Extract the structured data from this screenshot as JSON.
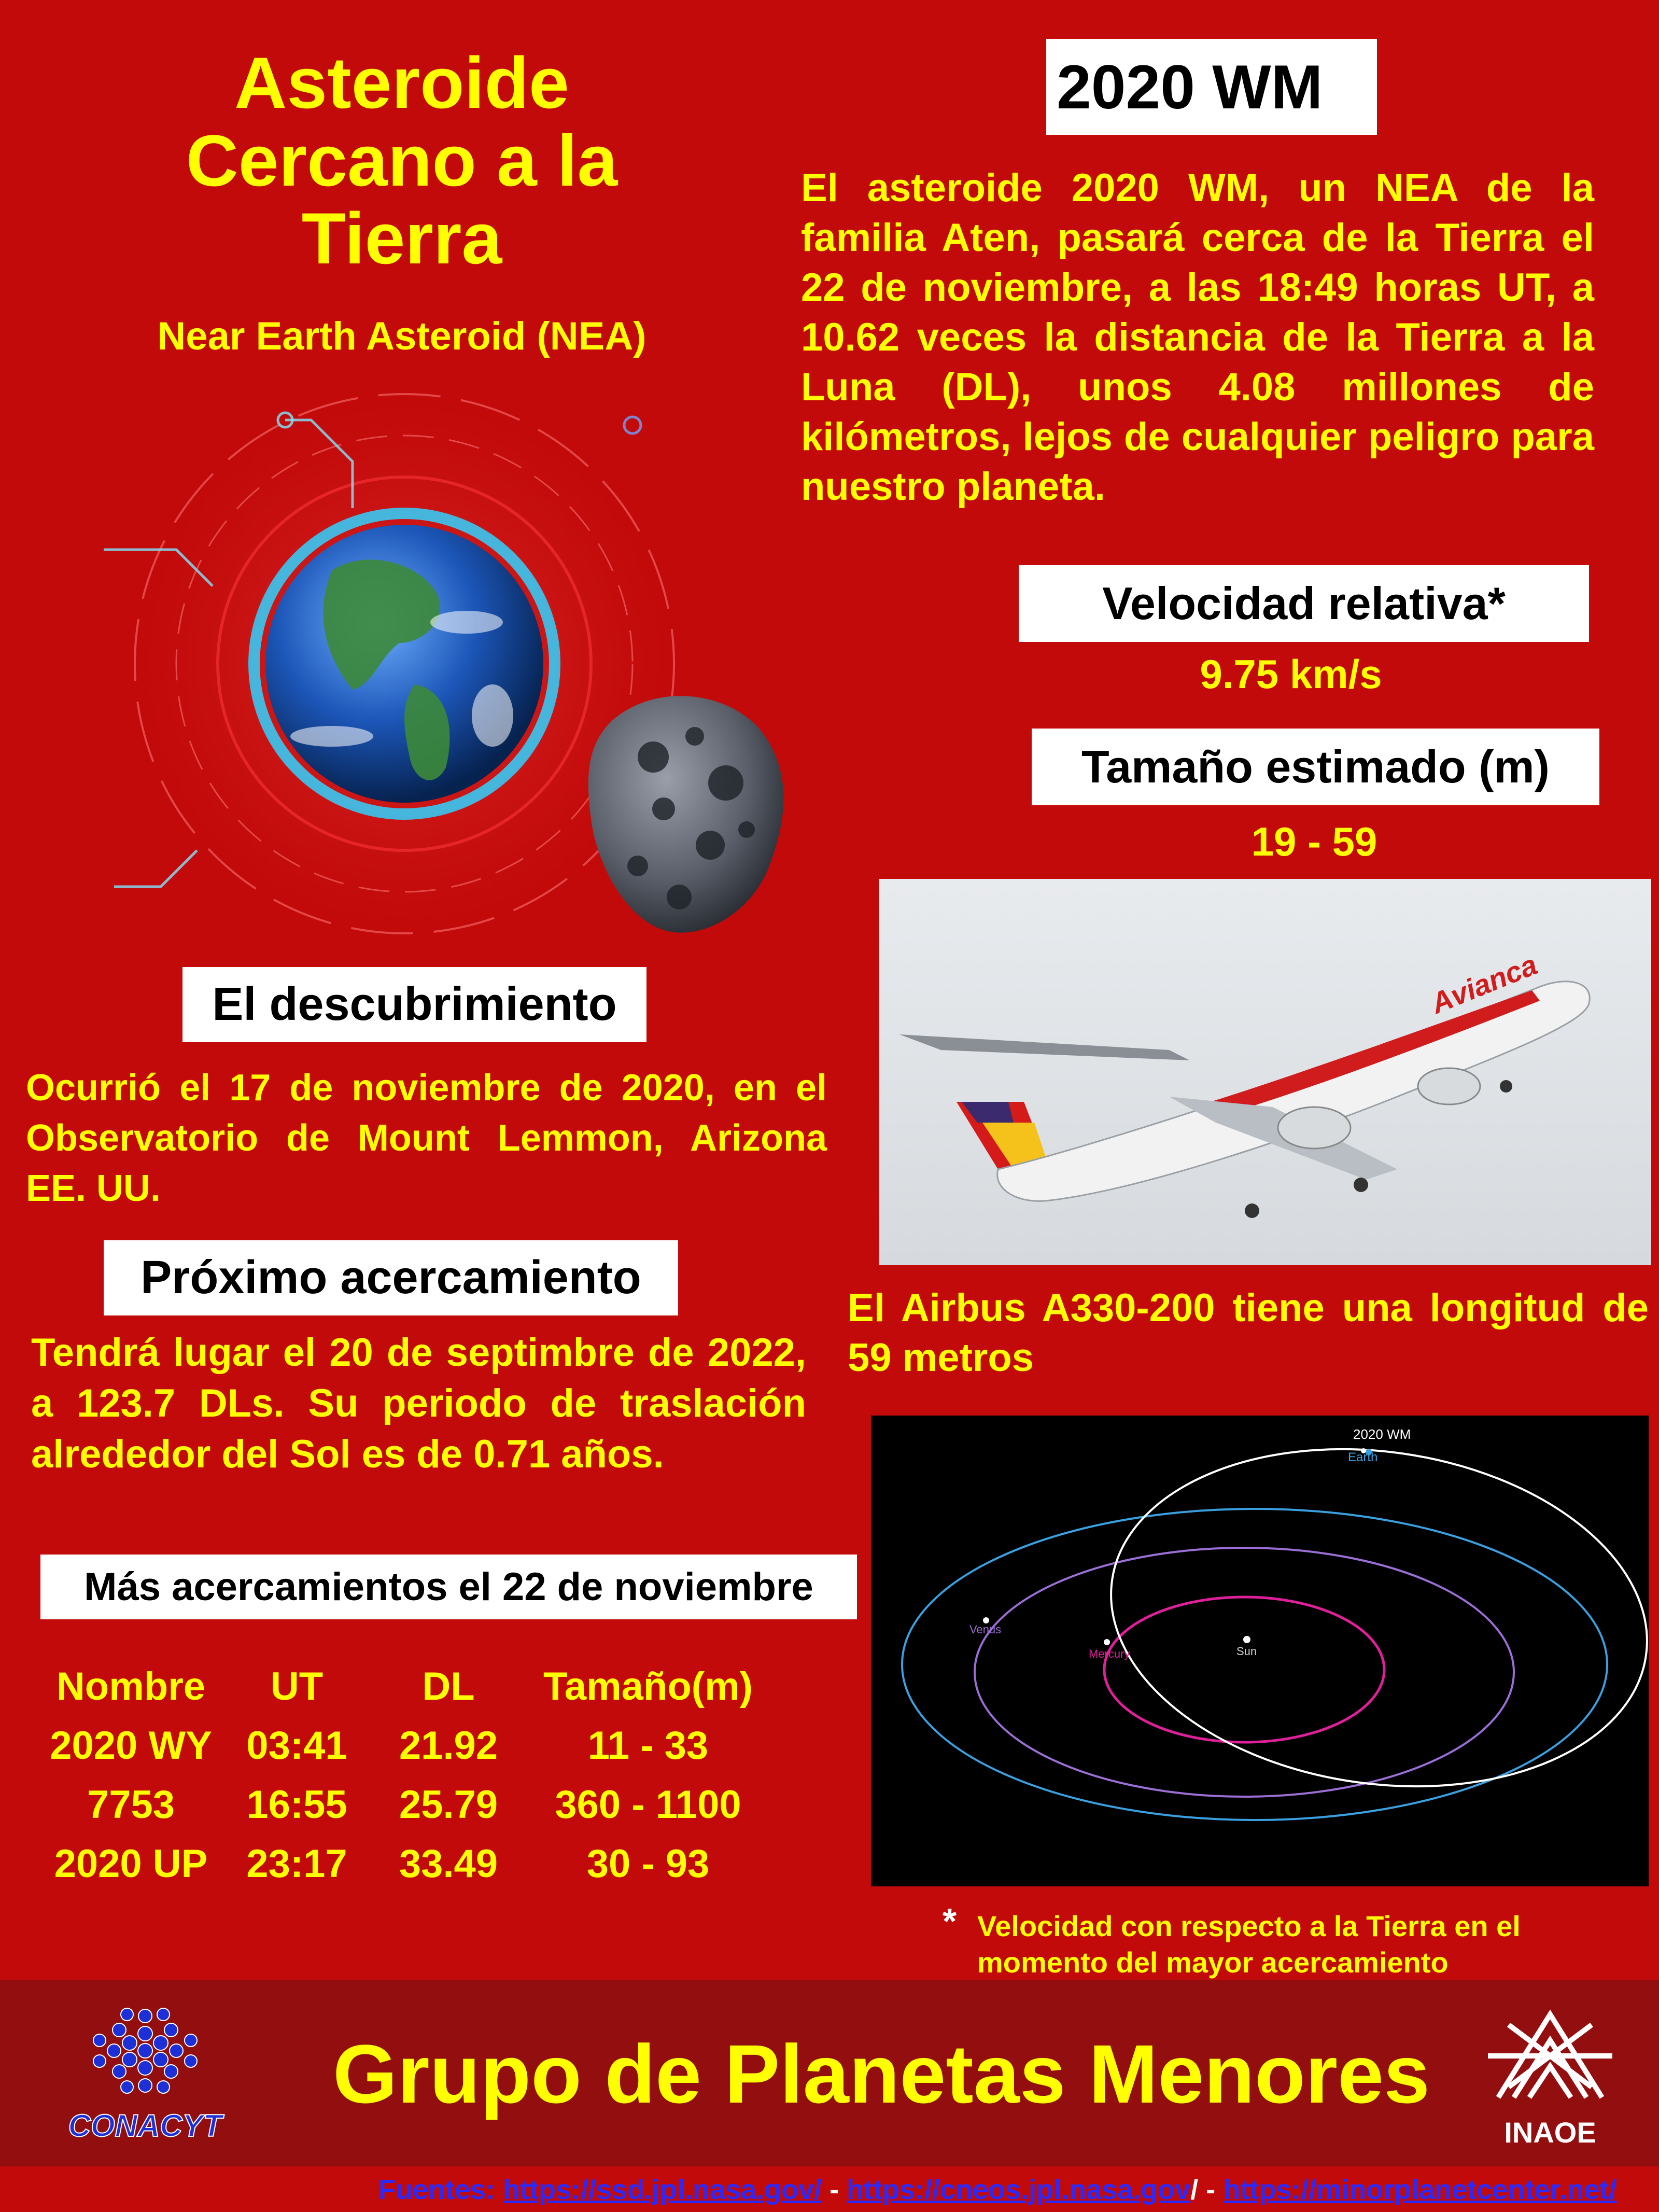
{
  "header": {
    "title": "Asteroide Cercano a la Tierra",
    "subtitle": "Near Earth Asteroid (NEA)"
  },
  "asteroid": {
    "name": "2020 WM",
    "description": "El  asteroide 2020 WM, un NEA de  la familia Aten, pasará cerca de la Tierra el 22 de noviembre, a las 18:49 horas UT, a 10.62 veces la distancia de la Tierra a la Luna (DL), unos 4.08 millones de kilómetros, lejos de cualquier peligro para nuestro planeta.",
    "velocity_label": "Velocidad relativa*",
    "velocity_value": "9.75 km/s",
    "size_label": "Tamaño estimado (m)",
    "size_value": "19 - 59"
  },
  "comparison": {
    "caption": "El Airbus A330-200 tiene una longitud de 59 metros",
    "plane_livery": "Avianca"
  },
  "discovery": {
    "label": "El descubrimiento",
    "text": "Ocurrió el 17 de noviembre de 2020, en el Observatorio de Mount Lemmon, Arizona EE. UU."
  },
  "next_approach": {
    "label": "Próximo acercamiento",
    "text": "Tendrá lugar el 20 de septimbre de 2022, a 123.7 DLs. Su periodo de traslación alrededor del Sol es de 0.71  años."
  },
  "more_approaches": {
    "label": "Más acercamientos el 22 de noviembre",
    "columns": [
      "Nombre",
      "UT",
      "DL",
      "Tamaño(m)"
    ],
    "rows": [
      [
        "2020 WY",
        "03:41",
        "21.92",
        "11 - 33"
      ],
      [
        "7753",
        "16:55",
        "25.79",
        "360 - 1100"
      ],
      [
        "2020 UP",
        "23:17",
        "33.49",
        "30 - 93"
      ]
    ]
  },
  "orbit_diagram": {
    "object_label": "2020 WM",
    "earth_label": "Earth",
    "venus_label": "Venus",
    "mercury_label": "Mercury",
    "sun_label": "Sun",
    "colors": {
      "earth": "#3aa0e0",
      "venus": "#9b6fd6",
      "mercury": "#e0209a",
      "object": "#ffffff"
    }
  },
  "footnote": {
    "star": "*",
    "text": "Velocidad con respecto a la Tierra en el momento del mayor acercamiento"
  },
  "footer": {
    "group_name": "Grupo de Planetas Menores",
    "conacyt_logo_text": "CONACYT",
    "inaoe_logo_text": "INAOE",
    "sources_label": "Fuentes:",
    "source_1": "https://ssd.jpl.nasa.gov/",
    "source_2": "https://cneos.jpl.nasa.gov",
    "source_3": "https://minorplanetcenter.net/",
    "sep_1": " - ",
    "sep_2": "/ - ",
    "sep_3": ""
  },
  "theme": {
    "background": "#c20a0a",
    "accent": "#ffff00",
    "footer_band": "#930f0f"
  }
}
